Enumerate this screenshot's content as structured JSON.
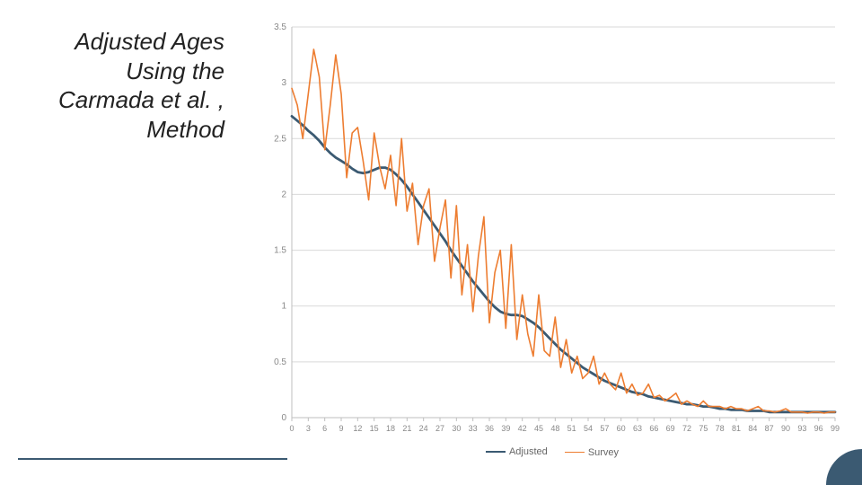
{
  "title": {
    "lines": [
      "Adjusted Ages",
      "Using the",
      "Carmada et al. ,",
      "Method"
    ],
    "font_size": 26,
    "font_style": "italic",
    "color": "#222222"
  },
  "chart": {
    "type": "line",
    "background_color": "#ffffff",
    "plot_background_color": "#ffffff",
    "grid_color": "#d9d9d9",
    "axis_color": "#bfbfbf",
    "tick_label_color": "#888888",
    "tick_fontsize": 10,
    "ylim": [
      0,
      3.5
    ],
    "ytick_step": 0.5,
    "yticks": [
      0,
      0.5,
      1,
      1.5,
      2,
      2.5,
      3,
      3.5
    ],
    "xlim": [
      0,
      99
    ],
    "x_tick_step": 3,
    "x_values": [
      0,
      1,
      2,
      3,
      4,
      5,
      6,
      7,
      8,
      9,
      10,
      11,
      12,
      13,
      14,
      15,
      16,
      17,
      18,
      19,
      20,
      21,
      22,
      23,
      24,
      25,
      26,
      27,
      28,
      29,
      30,
      31,
      32,
      33,
      34,
      35,
      36,
      37,
      38,
      39,
      40,
      41,
      42,
      43,
      44,
      45,
      46,
      47,
      48,
      49,
      50,
      51,
      52,
      53,
      54,
      55,
      56,
      57,
      58,
      59,
      60,
      61,
      62,
      63,
      64,
      65,
      66,
      67,
      68,
      69,
      70,
      71,
      72,
      73,
      74,
      75,
      76,
      77,
      78,
      79,
      80,
      81,
      82,
      83,
      84,
      85,
      86,
      87,
      88,
      89,
      90,
      91,
      92,
      93,
      94,
      95,
      96,
      97,
      98,
      99
    ],
    "series": [
      {
        "name": "Adjusted",
        "color": "#3b5a72",
        "line_width": 2.8,
        "values": [
          2.7,
          2.66,
          2.62,
          2.57,
          2.53,
          2.48,
          2.42,
          2.37,
          2.33,
          2.3,
          2.27,
          2.23,
          2.2,
          2.19,
          2.2,
          2.22,
          2.24,
          2.24,
          2.22,
          2.18,
          2.13,
          2.07,
          2.0,
          1.93,
          1.86,
          1.79,
          1.72,
          1.65,
          1.58,
          1.5,
          1.43,
          1.36,
          1.29,
          1.22,
          1.16,
          1.1,
          1.04,
          0.99,
          0.95,
          0.93,
          0.92,
          0.92,
          0.91,
          0.88,
          0.85,
          0.81,
          0.76,
          0.71,
          0.66,
          0.61,
          0.57,
          0.53,
          0.49,
          0.45,
          0.42,
          0.39,
          0.36,
          0.33,
          0.31,
          0.29,
          0.27,
          0.25,
          0.23,
          0.22,
          0.21,
          0.19,
          0.18,
          0.17,
          0.16,
          0.15,
          0.14,
          0.13,
          0.12,
          0.12,
          0.11,
          0.1,
          0.1,
          0.09,
          0.08,
          0.08,
          0.07,
          0.07,
          0.07,
          0.06,
          0.06,
          0.06,
          0.06,
          0.05,
          0.05,
          0.05,
          0.05,
          0.05,
          0.05,
          0.05,
          0.05,
          0.05,
          0.05,
          0.05,
          0.05,
          0.05
        ]
      },
      {
        "name": "Survey",
        "color": "#ed7d31",
        "line_width": 1.6,
        "values": [
          2.95,
          2.8,
          2.5,
          2.9,
          3.3,
          3.05,
          2.4,
          2.8,
          3.25,
          2.9,
          2.15,
          2.55,
          2.6,
          2.3,
          1.95,
          2.55,
          2.25,
          2.05,
          2.35,
          1.9,
          2.5,
          1.85,
          2.1,
          1.55,
          1.9,
          2.05,
          1.4,
          1.7,
          1.95,
          1.25,
          1.9,
          1.1,
          1.55,
          0.95,
          1.45,
          1.8,
          0.85,
          1.3,
          1.5,
          0.8,
          1.55,
          0.7,
          1.1,
          0.75,
          0.55,
          1.1,
          0.6,
          0.55,
          0.9,
          0.45,
          0.7,
          0.4,
          0.55,
          0.35,
          0.4,
          0.55,
          0.3,
          0.4,
          0.3,
          0.25,
          0.4,
          0.22,
          0.3,
          0.2,
          0.22,
          0.3,
          0.18,
          0.2,
          0.15,
          0.18,
          0.22,
          0.12,
          0.15,
          0.12,
          0.1,
          0.15,
          0.1,
          0.1,
          0.1,
          0.08,
          0.1,
          0.08,
          0.08,
          0.06,
          0.08,
          0.1,
          0.06,
          0.06,
          0.05,
          0.06,
          0.08,
          0.05,
          0.05,
          0.05,
          0.04,
          0.05,
          0.05,
          0.04,
          0.05,
          0.05
        ]
      }
    ],
    "legend": {
      "position": "bottom",
      "fontsize": 11,
      "text_color": "#666666"
    }
  },
  "decor": {
    "footer_rule_color": "#3b5a72",
    "footer_rule_width": 2,
    "corner_color": "#3b5a72"
  }
}
